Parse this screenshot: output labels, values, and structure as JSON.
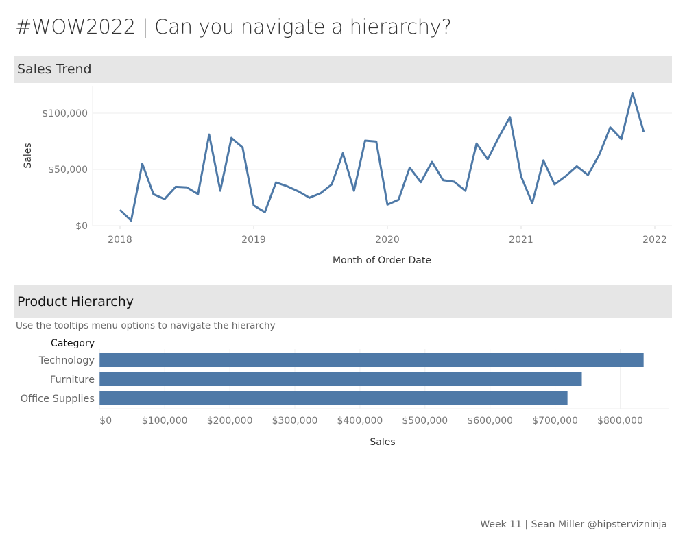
{
  "title": "#WOW2022 | Can you navigate a hierarchy?",
  "sections": {
    "sales_trend": "Sales Trend",
    "product_hierarchy": "Product Hierarchy",
    "product_subtitle": "Use the tooltips menu options to navigate the hierarchy"
  },
  "footer": "Week 11 | Sean Miller @hipstervizninja",
  "colors": {
    "mark": "#4e79a7",
    "band": "#e6e6e6"
  },
  "chart_data": [
    {
      "type": "line",
      "xlabel": "Month of Order Date",
      "ylabel": "Sales",
      "x_ticks": [
        "2018",
        "2019",
        "2020",
        "2021",
        "2022"
      ],
      "y_ticks": [
        "$0",
        "$50,000",
        "$100,000"
      ],
      "ylim": [
        0,
        125000
      ],
      "grid": true,
      "x": [
        "2018-01",
        "2018-02",
        "2018-03",
        "2018-04",
        "2018-05",
        "2018-06",
        "2018-07",
        "2018-08",
        "2018-09",
        "2018-10",
        "2018-11",
        "2018-12",
        "2019-01",
        "2019-02",
        "2019-03",
        "2019-04",
        "2019-05",
        "2019-06",
        "2019-07",
        "2019-08",
        "2019-09",
        "2019-10",
        "2019-11",
        "2019-12",
        "2020-01",
        "2020-02",
        "2020-03",
        "2020-04",
        "2020-05",
        "2020-06",
        "2020-07",
        "2020-08",
        "2020-09",
        "2020-10",
        "2020-11",
        "2020-12",
        "2021-01",
        "2021-02",
        "2021-03",
        "2021-04",
        "2021-05",
        "2021-06",
        "2021-07",
        "2021-08",
        "2021-09",
        "2021-10",
        "2021-11",
        "2021-12"
      ],
      "values": [
        14000,
        4500,
        55000,
        28000,
        23600,
        34500,
        34000,
        28000,
        81000,
        31000,
        78000,
        69500,
        18000,
        12000,
        38400,
        35000,
        30500,
        24800,
        28800,
        36600,
        64400,
        31000,
        75600,
        74800,
        18700,
        23000,
        51600,
        38600,
        56700,
        40400,
        39000,
        31000,
        73000,
        59000,
        78600,
        96500,
        43700,
        20000,
        58000,
        36600,
        44000,
        52800,
        45000,
        62800,
        87400,
        77000,
        118000,
        83400
      ]
    },
    {
      "type": "bar",
      "orientation": "horizontal",
      "category_header": "Category",
      "categories": [
        "Technology",
        "Furniture",
        "Office Supplies"
      ],
      "values": [
        836000,
        741000,
        719000
      ],
      "xlabel": "Sales",
      "x_ticks": [
        "$0",
        "$100,000",
        "$200,000",
        "$300,000",
        "$400,000",
        "$500,000",
        "$600,000",
        "$700,000",
        "$800,000"
      ],
      "xlim": [
        0,
        878000
      ],
      "grid": true
    }
  ]
}
